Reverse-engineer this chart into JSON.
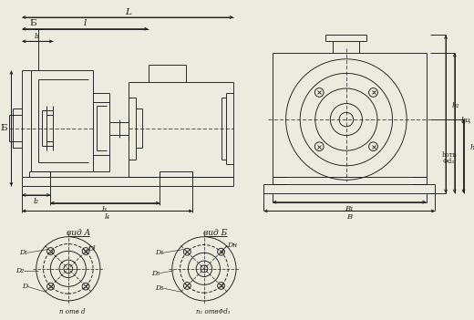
{
  "bg_color": "#ebebdf",
  "line_color": "#1a1a1a",
  "font_size": 6.5,
  "dim_labels": {
    "L": "L",
    "l": "l",
    "l1": "l₁",
    "l2": "l₂",
    "l3": "l₃",
    "l4": "l₄",
    "h1": "h₁",
    "hc": "hц",
    "h": "h",
    "B1": "B₁",
    "B": "B",
    "hotv": "hотв",
    "phi_d3": "Φd₃",
    "B_label": "Б",
    "D": "D",
    "D1": "D₁",
    "D2": "D₂",
    "Dl": "Dl",
    "D3": "D₃",
    "D4": "D₄",
    "D5": "D₅",
    "Dn": "Dн",
    "n_otv_d": "n отв d",
    "n1_otv": "n₁ отвΦd₁",
    "vid_A": "вид A",
    "vid_B": "вид Б"
  }
}
